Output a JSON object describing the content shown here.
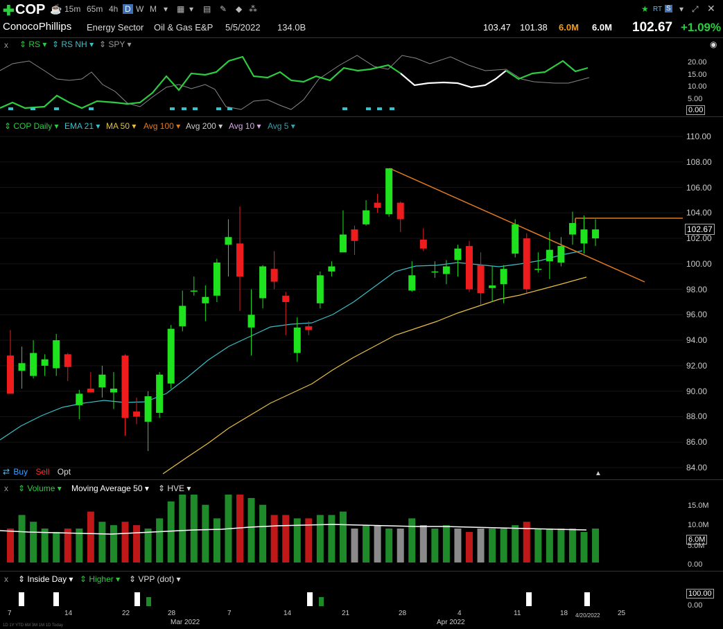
{
  "toolbar": {
    "symbol": "COP",
    "timeframes": [
      "15m",
      "65m",
      "4h",
      "D",
      "W",
      "M"
    ],
    "selected_timeframe": "D",
    "rt_label": "RT"
  },
  "info": {
    "company": "ConocoPhillips",
    "sector": "Energy Sector",
    "industry": "Oil & Gas E&P",
    "date": "5/5/2022",
    "market_cap": "134.0B",
    "high": "103.47",
    "low": "101.38",
    "volume_orange": "6.0M",
    "volume": "6.0M",
    "last": "102.67",
    "change": "+1.09%"
  },
  "rs_panel": {
    "x": "x",
    "labels": [
      "RS",
      "RS NH",
      "SPY"
    ],
    "yticks": [
      "20.00",
      "15.00",
      "10.00",
      "5.00",
      "0.00"
    ]
  },
  "main_panel": {
    "labels": [
      "COP Daily",
      "EMA 21",
      "MA 50",
      "Avg 100",
      "Avg 200",
      "Avg 10",
      "Avg 5"
    ],
    "label_colors": [
      "#2ecc40",
      "#39c0c8",
      "#e8c040",
      "#e07a20",
      "#cccccc",
      "#d8a8e8",
      "#3aa0a8"
    ],
    "yticks": [
      "110.00",
      "108.00",
      "106.00",
      "104.00",
      "102.00",
      "100.00",
      "98.00",
      "96.00",
      "94.00",
      "92.00",
      "90.00",
      "88.00",
      "86.00",
      "84.00"
    ],
    "last_price": "102.67",
    "buy": "Buy",
    "sell": "Sell",
    "opt": "Opt"
  },
  "volume_panel": {
    "x": "x",
    "labels": [
      "Volume",
      "Moving Average 50",
      "HVE"
    ],
    "yticks": [
      "15.0M",
      "10.0M",
      "5.0M",
      "0.00"
    ],
    "current": "6.0M"
  },
  "bottom_panel": {
    "x": "x",
    "labels": [
      "Inside Day",
      "Higher",
      "VPP (dot)"
    ],
    "yticks": [
      "100.00",
      "0.00"
    ]
  },
  "x_axis": {
    "labels": [
      "7",
      "14",
      "22",
      "28",
      "Mar 2022",
      "7",
      "14",
      "21",
      "28",
      "4",
      "Apr 2022",
      "11",
      "18",
      "4/20/2022",
      "25"
    ],
    "small": "1D 1Y YTD 6M 3M 1M 1D Today"
  },
  "chart_data": {
    "type": "candlestick",
    "ylim": [
      83,
      111
    ],
    "ohlc": [
      [
        92.8,
        94.8,
        89.8,
        89.8
      ],
      [
        91.6,
        93.5,
        90.2,
        92.2
      ],
      [
        91.2,
        94.0,
        91.0,
        93.0
      ],
      [
        92.0,
        92.9,
        91.2,
        92.5
      ],
      [
        91.8,
        94.5,
        91.2,
        94.0
      ],
      [
        92.9,
        93.0,
        90.8,
        91.9
      ],
      [
        88.9,
        90.1,
        87.8,
        89.8
      ],
      [
        90.2,
        91.5,
        89.9,
        89.9
      ],
      [
        90.3,
        92.0,
        89.5,
        91.3
      ],
      [
        89.9,
        91.5,
        88.6,
        90.2
      ],
      [
        92.8,
        92.9,
        86.5,
        87.9
      ],
      [
        88.4,
        89.5,
        87.4,
        88.0
      ],
      [
        87.6,
        90.0,
        85.3,
        89.6
      ],
      [
        88.3,
        91.5,
        87.9,
        91.3
      ],
      [
        90.6,
        95.2,
        90.2,
        94.9
      ],
      [
        95.1,
        97.9,
        94.7,
        96.7
      ],
      [
        97.9,
        99.0,
        97.5,
        97.9
      ],
      [
        96.9,
        98.3,
        95.5,
        97.4
      ],
      [
        97.5,
        100.4,
        97.0,
        100.1
      ],
      [
        101.5,
        103.5,
        99.0,
        102.1
      ],
      [
        101.6,
        104.5,
        96.3,
        99.0
      ],
      [
        95.0,
        98.0,
        92.8,
        96.0
      ],
      [
        97.3,
        99.9,
        96.5,
        99.8
      ],
      [
        99.6,
        101.0,
        98.0,
        98.6
      ],
      [
        97.5,
        97.8,
        94.4,
        97.0
      ],
      [
        93.0,
        95.8,
        92.3,
        95.0
      ],
      [
        95.1,
        95.5,
        94.4,
        94.8
      ],
      [
        96.9,
        99.4,
        96.5,
        99.1
      ],
      [
        99.4,
        100.2,
        99.0,
        99.8
      ],
      [
        100.9,
        104.2,
        100.9,
        102.3
      ],
      [
        102.7,
        103.0,
        100.7,
        101.8
      ],
      [
        103.1,
        105.0,
        103.0,
        104.2
      ],
      [
        104.8,
        105.5,
        104.0,
        104.4
      ],
      [
        103.9,
        107.5,
        103.7,
        107.5
      ],
      [
        104.8,
        104.9,
        102.5,
        103.5
      ],
      [
        97.9,
        100.2,
        97.8,
        99.1
      ],
      [
        101.9,
        102.8,
        101.0,
        101.2
      ],
      [
        99.4,
        100.2,
        98.9,
        99.4
      ],
      [
        99.2,
        100.3,
        98.4,
        99.8
      ],
      [
        100.3,
        101.5,
        99.0,
        101.2
      ],
      [
        101.4,
        101.8,
        97.8,
        98.0
      ],
      [
        99.9,
        100.9,
        96.8,
        97.7
      ],
      [
        98.1,
        99.8,
        97.0,
        98.3
      ],
      [
        98.4,
        99.9,
        96.9,
        99.6
      ],
      [
        100.8,
        103.5,
        100.5,
        103.1
      ],
      [
        102.0,
        102.4,
        97.7,
        98.0
      ],
      [
        99.6,
        100.9,
        99.3,
        99.6
      ],
      [
        100.2,
        102.5,
        98.8,
        101.1
      ],
      [
        100.1,
        102.1,
        99.8,
        101.4
      ],
      [
        102.3,
        104.1,
        101.5,
        103.2
      ],
      [
        101.6,
        103.8,
        100.8,
        102.7
      ],
      [
        102.0,
        103.5,
        101.4,
        102.7
      ]
    ]
  }
}
